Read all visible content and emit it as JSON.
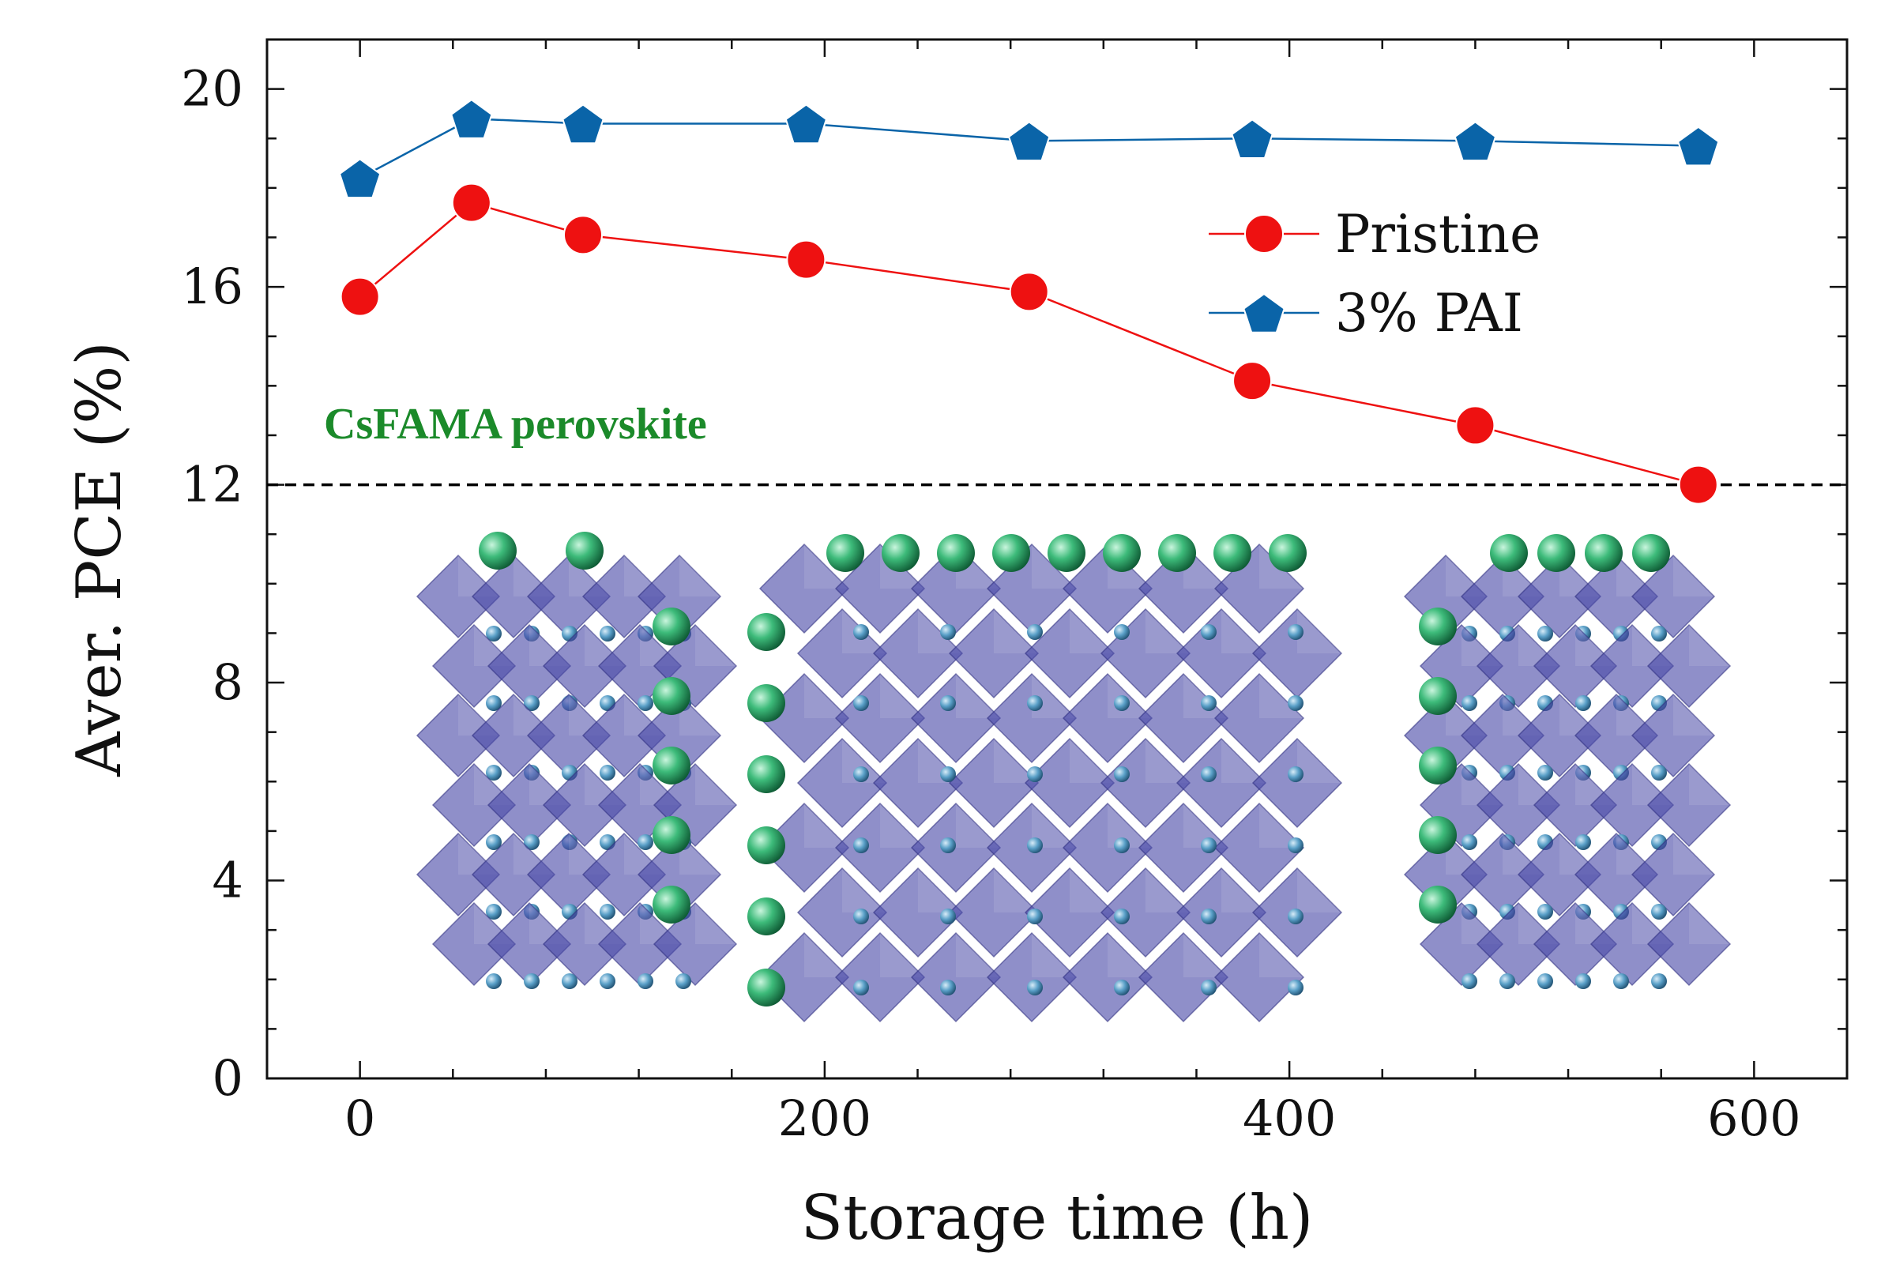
{
  "chart_data": {
    "type": "line",
    "xlabel": "Storage time (h)",
    "ylabel": "Aver. PCE (%)",
    "xlim": [
      -40,
      640
    ],
    "ylim": [
      0,
      21
    ],
    "x_ticks": [
      0,
      200,
      400,
      600
    ],
    "x_tick_labels": [
      "0",
      "200",
      "400",
      "600"
    ],
    "y_ticks": [
      0,
      4,
      8,
      12,
      16,
      20
    ],
    "y_tick_labels": [
      "0",
      "4",
      "8",
      "12",
      "16",
      "20"
    ],
    "x_minor_step": 40,
    "y_minor_step": 1,
    "legend_position": "top-right",
    "series": [
      {
        "name": "Pristine",
        "color": "#ee1111",
        "marker": "circle",
        "x": [
          0,
          48,
          96,
          192,
          288,
          384,
          480,
          576
        ],
        "values": [
          15.8,
          17.7,
          17.05,
          16.55,
          15.9,
          14.1,
          13.2,
          12.0
        ]
      },
      {
        "name": "3% PAI",
        "color": "#0a64a8",
        "marker": "pentagon",
        "x": [
          0,
          48,
          96,
          192,
          288,
          384,
          480,
          576
        ],
        "values": [
          18.2,
          19.4,
          19.3,
          19.3,
          18.95,
          19.0,
          18.95,
          18.85
        ]
      }
    ],
    "reference_line": {
      "y": 12,
      "style": "dashed",
      "color": "#000000"
    },
    "annotations": [
      {
        "text": "CsFAMA perovskite",
        "color": "#1b8a2a"
      }
    ],
    "inset_image": {
      "description": "perovskite crystal structure",
      "octahedra_color": "#4a4aa8",
      "a_site_color": "#2fa86a",
      "small_atom_color": "#5aa0c8"
    }
  }
}
